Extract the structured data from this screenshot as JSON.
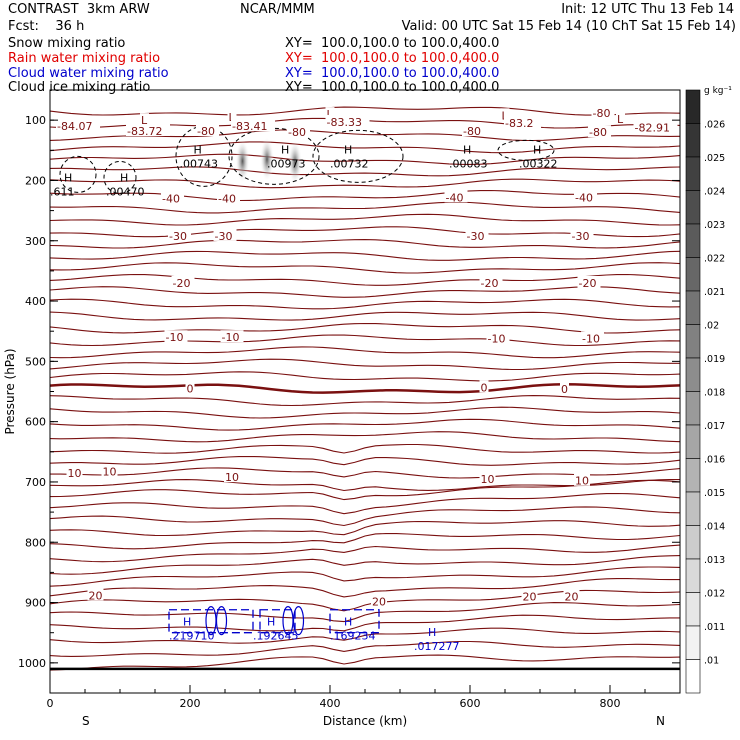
{
  "header": {
    "top_left": "CONTRAST  3km ARW",
    "top_center": "NCAR/MMM",
    "top_right": "Init: 12 UTC Thu 13 Feb 14",
    "fcst": "Fcst:    36 h",
    "valid": "Valid: 00 UTC Sat 15 Feb 14 (10 ChT Sat 15 Feb 14)",
    "fields": [
      {
        "name": "Snow mixing ratio",
        "xy": "XY=  100.0,100.0 to 100.0,400.0",
        "color": "#000000"
      },
      {
        "name": "Rain water mixing ratio",
        "xy": "XY=  100.0,100.0 to 100.0,400.0",
        "color": "#e00000"
      },
      {
        "name": "Cloud water mixing ratio",
        "xy": "XY=  100.0,100.0 to 100.0,400.0",
        "color": "#0000cc"
      },
      {
        "name": "Cloud ice mixing ratio",
        "xy": "XY=  100.0,100.0 to 100.0,400.0",
        "color": "#000000"
      }
    ]
  },
  "chart_data": {
    "type": "contour",
    "xlabel": "Distance (km)",
    "ylabel": "Pressure (hPa)",
    "xlim": [
      0,
      900
    ],
    "ylim": [
      1050,
      50
    ],
    "x_ticks": [
      "0",
      "200",
      "400",
      "600",
      "800"
    ],
    "y_ticks": [
      "100",
      "200",
      "300",
      "400",
      "500",
      "600",
      "700",
      "800",
      "900",
      "1000"
    ],
    "x_end_labels": {
      "left": "S",
      "right": "N"
    },
    "colorbar": {
      "unit": "g kg⁻¹",
      "labels": [
        ".026",
        ".025",
        ".024",
        ".023",
        ".022",
        ".021",
        ".02",
        ".019",
        ".018",
        ".017",
        ".016",
        ".015",
        ".014",
        ".013",
        ".012",
        ".011",
        ".01"
      ]
    },
    "temperature_contour_labels": [
      {
        "text": "-84.07",
        "x": 10,
        "p": 110
      },
      {
        "text": "L",
        "x": 130,
        "p": 100
      },
      {
        "text": "-83.72",
        "x": 110,
        "p": 118
      },
      {
        "text": "-80",
        "x": 210,
        "p": 118
      },
      {
        "text": "L",
        "x": 255,
        "p": 95
      },
      {
        "text": "-83.41",
        "x": 260,
        "p": 110
      },
      {
        "text": "-80",
        "x": 340,
        "p": 120
      },
      {
        "text": "L",
        "x": 395,
        "p": 90
      },
      {
        "text": "-83.33",
        "x": 395,
        "p": 103
      },
      {
        "text": "-80",
        "x": 590,
        "p": 118
      },
      {
        "text": "L",
        "x": 645,
        "p": 92
      },
      {
        "text": "-83.2",
        "x": 650,
        "p": 105
      },
      {
        "text": "-80",
        "x": 775,
        "p": 88
      },
      {
        "text": "-80",
        "x": 770,
        "p": 120
      },
      {
        "text": "L",
        "x": 810,
        "p": 98
      },
      {
        "text": "-82.91",
        "x": 835,
        "p": 112
      },
      {
        "text": "-40",
        "x": 160,
        "p": 230
      },
      {
        "text": "-40",
        "x": 240,
        "p": 230
      },
      {
        "text": "-40",
        "x": 565,
        "p": 228
      },
      {
        "text": "-40",
        "x": 750,
        "p": 228
      },
      {
        "text": "-30",
        "x": 170,
        "p": 292
      },
      {
        "text": "-30",
        "x": 235,
        "p": 292
      },
      {
        "text": "-30",
        "x": 595,
        "p": 292
      },
      {
        "text": "-30",
        "x": 745,
        "p": 292
      },
      {
        "text": "-20",
        "x": 175,
        "p": 370
      },
      {
        "text": "-20",
        "x": 615,
        "p": 370
      },
      {
        "text": "-20",
        "x": 755,
        "p": 370
      },
      {
        "text": "-10",
        "x": 165,
        "p": 460
      },
      {
        "text": "-10",
        "x": 245,
        "p": 460
      },
      {
        "text": "-10",
        "x": 625,
        "p": 462
      },
      {
        "text": "-10",
        "x": 760,
        "p": 462
      },
      {
        "text": "0",
        "x": 195,
        "p": 545
      },
      {
        "text": "0",
        "x": 615,
        "p": 543
      },
      {
        "text": "0",
        "x": 730,
        "p": 546
      },
      {
        "text": "10",
        "x": 25,
        "p": 685
      },
      {
        "text": "10",
        "x": 75,
        "p": 683
      },
      {
        "text": "10",
        "x": 250,
        "p": 692
      },
      {
        "text": "10",
        "x": 615,
        "p": 695
      },
      {
        "text": "10",
        "x": 750,
        "p": 698
      },
      {
        "text": "20",
        "x": 55,
        "p": 888
      },
      {
        "text": "20",
        "x": 460,
        "p": 898
      },
      {
        "text": "20",
        "x": 675,
        "p": 890
      },
      {
        "text": "20",
        "x": 735,
        "p": 890
      }
    ],
    "highs": [
      {
        "text": ".00743",
        "x": 185,
        "p": 172,
        "color": "#000000"
      },
      {
        "text": ".00973",
        "x": 310,
        "p": 172,
        "color": "#000000"
      },
      {
        "text": ".00732",
        "x": 400,
        "p": 172,
        "color": "#000000"
      },
      {
        "text": ".00083",
        "x": 570,
        "p": 172,
        "color": "#000000"
      },
      {
        "text": ".00322",
        "x": 670,
        "p": 172,
        "color": "#000000"
      },
      {
        "text": ".611",
        "x": 0,
        "p": 218,
        "color": "#000000"
      },
      {
        "text": ".00470",
        "x": 80,
        "p": 218,
        "color": "#000000"
      },
      {
        "text": ".219710",
        "x": 170,
        "p": 955,
        "color": "#0000cc"
      },
      {
        "text": ".192645",
        "x": 290,
        "p": 955,
        "color": "#0000cc"
      },
      {
        "text": ".169234",
        "x": 400,
        "p": 955,
        "color": "#0000cc"
      },
      {
        "text": ".017277",
        "x": 520,
        "p": 972,
        "color": "#0000cc"
      }
    ]
  }
}
